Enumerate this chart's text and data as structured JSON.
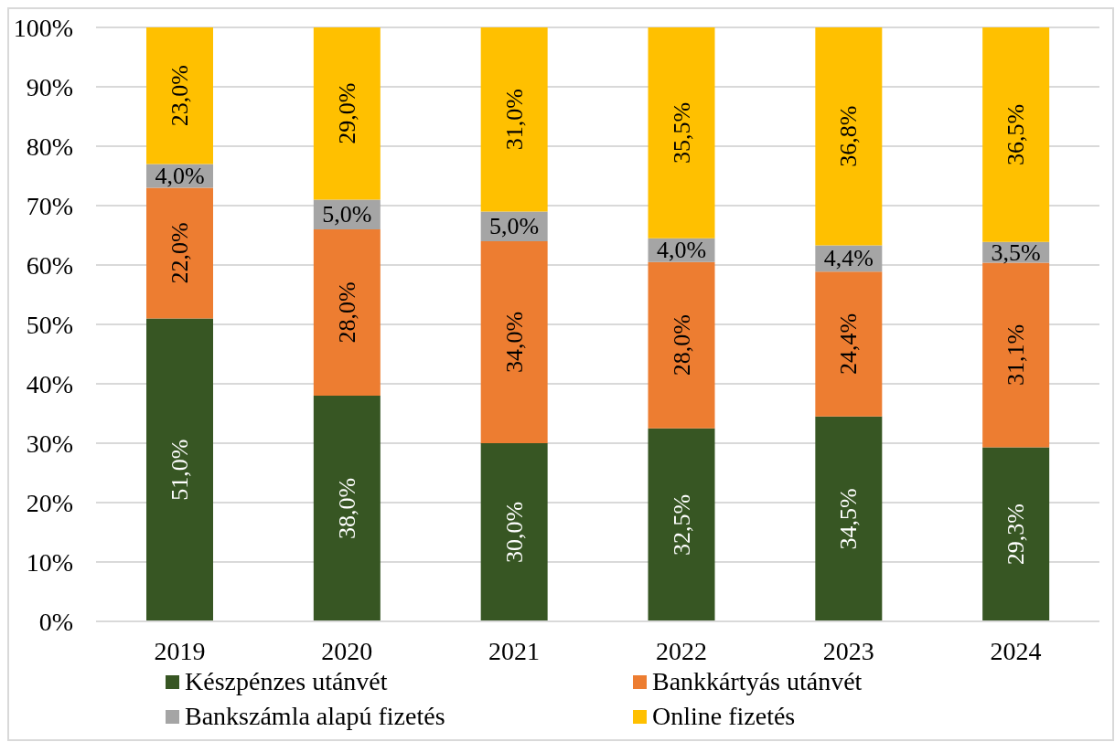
{
  "chart_data": {
    "type": "bar",
    "stacked": true,
    "categories": [
      "2019",
      "2020",
      "2021",
      "2022",
      "2023",
      "2024"
    ],
    "series": [
      {
        "name": "Készpénzes utánvét",
        "color": "#375623",
        "values": [
          51.0,
          38.0,
          30.0,
          32.5,
          34.5,
          29.3
        ],
        "value_labels": [
          "51,0%",
          "38,0%",
          "30,0%",
          "32,5%",
          "34,5%",
          "29,3%"
        ]
      },
      {
        "name": "Bankkártyás utánvét",
        "color": "#ed7d31",
        "values": [
          22.0,
          28.0,
          34.0,
          28.0,
          24.4,
          31.1
        ],
        "value_labels": [
          "22,0%",
          "28,0%",
          "34,0%",
          "28,0%",
          "24,4%",
          "31,1%"
        ]
      },
      {
        "name": "Bankszámla alapú fizetés",
        "color": "#a5a5a5",
        "values": [
          4.0,
          5.0,
          5.0,
          4.0,
          4.4,
          3.5
        ],
        "value_labels": [
          "4,0%",
          "5,0%",
          "5,0%",
          "4,0%",
          "4,4%",
          "3,5%"
        ]
      },
      {
        "name": "Online fizetés",
        "color": "#ffc000",
        "values": [
          23.0,
          29.0,
          31.0,
          35.5,
          36.8,
          36.5
        ],
        "value_labels": [
          "23,0%",
          "29,0%",
          "31,0%",
          "35,5%",
          "36,8%",
          "36,5%"
        ]
      }
    ],
    "ylim": [
      0,
      100
    ],
    "yticks": [
      {
        "value": 0,
        "label": "0%"
      },
      {
        "value": 10,
        "label": "10%"
      },
      {
        "value": 20,
        "label": "20%"
      },
      {
        "value": 30,
        "label": "30%"
      },
      {
        "value": 40,
        "label": "40%"
      },
      {
        "value": 50,
        "label": "50%"
      },
      {
        "value": 60,
        "label": "60%"
      },
      {
        "value": 70,
        "label": "70%"
      },
      {
        "value": 80,
        "label": "80%"
      },
      {
        "value": 90,
        "label": "90%"
      },
      {
        "value": 100,
        "label": "100%"
      }
    ],
    "grid": "y",
    "legend": "bottom"
  }
}
